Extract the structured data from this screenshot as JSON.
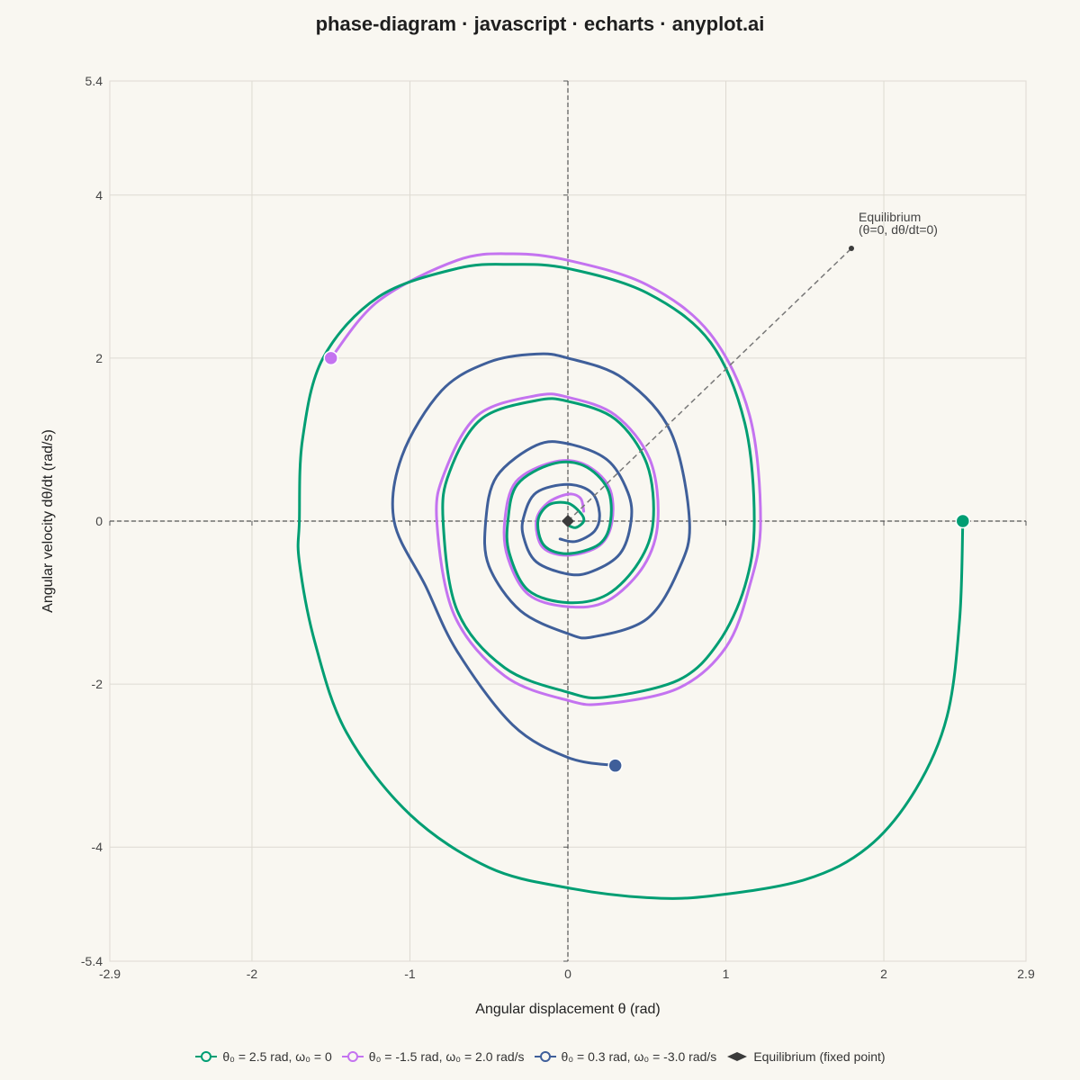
{
  "chart_data": {
    "type": "line",
    "title": "phase-diagram · javascript · echarts · anyplot.ai",
    "xlabel": "Angular displacement θ (rad)",
    "ylabel": "Angular velocity dθ/dt (rad/s)",
    "xlim": [
      -2.9,
      2.9
    ],
    "ylim": [
      -5.4,
      5.4
    ],
    "x_ticks": [
      "-2.9",
      "-2",
      "-1",
      "0",
      "1",
      "2",
      "2.9"
    ],
    "x_tick_values": [
      -2.9,
      -2,
      -1,
      0,
      1,
      2,
      2.9
    ],
    "y_ticks": [
      "5.4",
      "4",
      "2",
      "0",
      "-2",
      "-4",
      "-5.4"
    ],
    "y_tick_values": [
      5.4,
      4,
      2,
      0,
      -2,
      -4,
      -5.4
    ],
    "grid": true,
    "legend_position": "bottom-center",
    "series": [
      {
        "name": "θ₀ = 2.5 rad, ω₀ = 0",
        "color": "#009e73",
        "initial": [
          2.5,
          0
        ],
        "trajectory": [
          [
            2.5,
            0
          ],
          [
            2.48,
            -1.2
          ],
          [
            2.4,
            -2.4
          ],
          [
            2.2,
            -3.3
          ],
          [
            1.9,
            -4.0
          ],
          [
            1.5,
            -4.4
          ],
          [
            0.9,
            -4.6
          ],
          [
            0.5,
            -4.62
          ],
          [
            0.0,
            -4.5
          ],
          [
            -0.5,
            -4.25
          ],
          [
            -1.0,
            -3.6
          ],
          [
            -1.4,
            -2.6
          ],
          [
            -1.6,
            -1.5
          ],
          [
            -1.7,
            -0.5
          ],
          [
            -1.7,
            0.0
          ],
          [
            -1.68,
            1.0
          ],
          [
            -1.55,
            2.0
          ],
          [
            -1.2,
            2.75
          ],
          [
            -0.7,
            3.1
          ],
          [
            -0.35,
            3.15
          ],
          [
            0.0,
            3.1
          ],
          [
            0.5,
            2.8
          ],
          [
            0.9,
            2.2
          ],
          [
            1.12,
            1.2
          ],
          [
            1.18,
            0.0
          ],
          [
            1.12,
            -0.8
          ],
          [
            0.95,
            -1.5
          ],
          [
            0.7,
            -1.95
          ],
          [
            0.24,
            -2.16
          ],
          [
            0.0,
            -2.1
          ],
          [
            -0.4,
            -1.8
          ],
          [
            -0.7,
            -1.1
          ],
          [
            -0.79,
            0.0
          ],
          [
            -0.75,
            0.6
          ],
          [
            -0.55,
            1.25
          ],
          [
            -0.2,
            1.48
          ],
          [
            0.0,
            1.47
          ],
          [
            0.3,
            1.25
          ],
          [
            0.5,
            0.7
          ],
          [
            0.54,
            0.0
          ],
          [
            0.45,
            -0.5
          ],
          [
            0.25,
            -0.9
          ],
          [
            0.0,
            -1.0
          ],
          [
            -0.25,
            -0.85
          ],
          [
            -0.37,
            -0.4
          ],
          [
            -0.38,
            0.0
          ],
          [
            -0.32,
            0.45
          ],
          [
            -0.1,
            0.7
          ],
          [
            0.1,
            0.68
          ],
          [
            0.25,
            0.4
          ],
          [
            0.27,
            0.0
          ],
          [
            0.2,
            -0.28
          ],
          [
            0.0,
            -0.4
          ],
          [
            -0.15,
            -0.3
          ],
          [
            -0.19,
            0.0
          ],
          [
            -0.12,
            0.2
          ],
          [
            0.0,
            0.22
          ],
          [
            0.08,
            0.1
          ],
          [
            0.1,
            0.0
          ],
          [
            0.05,
            -0.08
          ],
          [
            0.0,
            -0.05
          ]
        ]
      },
      {
        "name": "θ₀ = -1.5 rad, ω₀ = 2.0 rad/s",
        "color": "#c473f0",
        "initial": [
          -1.5,
          2.0
        ],
        "trajectory": [
          [
            -1.5,
            2.0
          ],
          [
            -1.2,
            2.7
          ],
          [
            -0.7,
            3.2
          ],
          [
            -0.35,
            3.28
          ],
          [
            0.0,
            3.2
          ],
          [
            0.5,
            2.9
          ],
          [
            0.9,
            2.3
          ],
          [
            1.15,
            1.3
          ],
          [
            1.22,
            0.0
          ],
          [
            1.15,
            -0.8
          ],
          [
            1.0,
            -1.55
          ],
          [
            0.7,
            -2.05
          ],
          [
            0.24,
            -2.24
          ],
          [
            0.0,
            -2.2
          ],
          [
            -0.4,
            -1.9
          ],
          [
            -0.72,
            -1.15
          ],
          [
            -0.83,
            0.0
          ],
          [
            -0.78,
            0.6
          ],
          [
            -0.57,
            1.3
          ],
          [
            -0.2,
            1.54
          ],
          [
            0.0,
            1.52
          ],
          [
            0.3,
            1.3
          ],
          [
            0.52,
            0.75
          ],
          [
            0.57,
            0.0
          ],
          [
            0.48,
            -0.55
          ],
          [
            0.25,
            -0.98
          ],
          [
            0.0,
            -1.05
          ],
          [
            -0.25,
            -0.9
          ],
          [
            -0.38,
            -0.45
          ],
          [
            -0.4,
            0.0
          ],
          [
            -0.33,
            0.48
          ],
          [
            -0.1,
            0.72
          ],
          [
            0.1,
            0.7
          ],
          [
            0.26,
            0.42
          ],
          [
            0.28,
            0.0
          ],
          [
            0.2,
            -0.3
          ],
          [
            0.0,
            -0.42
          ],
          [
            -0.16,
            -0.32
          ],
          [
            -0.2,
            0.0
          ],
          [
            -0.13,
            0.22
          ],
          [
            0.0,
            0.33
          ],
          [
            0.08,
            0.28
          ],
          [
            0.1,
            0.12
          ]
        ]
      },
      {
        "name": "θ₀ = 0.3 rad, ω₀ = -3.0 rad/s",
        "color": "#3f5f9a",
        "initial": [
          0.3,
          -3.0
        ],
        "trajectory": [
          [
            0.3,
            -3.0
          ],
          [
            0.0,
            -2.9
          ],
          [
            -0.35,
            -2.5
          ],
          [
            -0.7,
            -1.6
          ],
          [
            -0.9,
            -0.8
          ],
          [
            -1.1,
            0.0
          ],
          [
            -1.05,
            0.8
          ],
          [
            -0.8,
            1.6
          ],
          [
            -0.5,
            1.95
          ],
          [
            -0.2,
            2.05
          ],
          [
            0.0,
            2.0
          ],
          [
            0.35,
            1.75
          ],
          [
            0.65,
            1.1
          ],
          [
            0.77,
            0.0
          ],
          [
            0.7,
            -0.6
          ],
          [
            0.5,
            -1.2
          ],
          [
            0.16,
            -1.42
          ],
          [
            0.0,
            -1.38
          ],
          [
            -0.3,
            -1.1
          ],
          [
            -0.5,
            -0.55
          ],
          [
            -0.52,
            0.0
          ],
          [
            -0.45,
            0.55
          ],
          [
            -0.2,
            0.93
          ],
          [
            0.0,
            0.95
          ],
          [
            0.25,
            0.75
          ],
          [
            0.38,
            0.35
          ],
          [
            0.4,
            0.0
          ],
          [
            0.33,
            -0.4
          ],
          [
            0.15,
            -0.62
          ],
          [
            0.0,
            -0.65
          ],
          [
            -0.2,
            -0.5
          ],
          [
            -0.28,
            -0.2
          ],
          [
            -0.28,
            0.05
          ],
          [
            -0.2,
            0.35
          ],
          [
            0.0,
            0.45
          ],
          [
            0.15,
            0.35
          ],
          [
            0.2,
            0.1
          ],
          [
            0.17,
            -0.12
          ],
          [
            0.05,
            -0.25
          ],
          [
            -0.05,
            -0.22
          ]
        ]
      }
    ],
    "equilibrium": {
      "name": "Equilibrium (fixed point)",
      "point": [
        0,
        0
      ],
      "color": "#3b3b3b",
      "annotation_line1": "Equilibrium",
      "annotation_line2": "(θ=0, dθ/dt=0)"
    }
  }
}
